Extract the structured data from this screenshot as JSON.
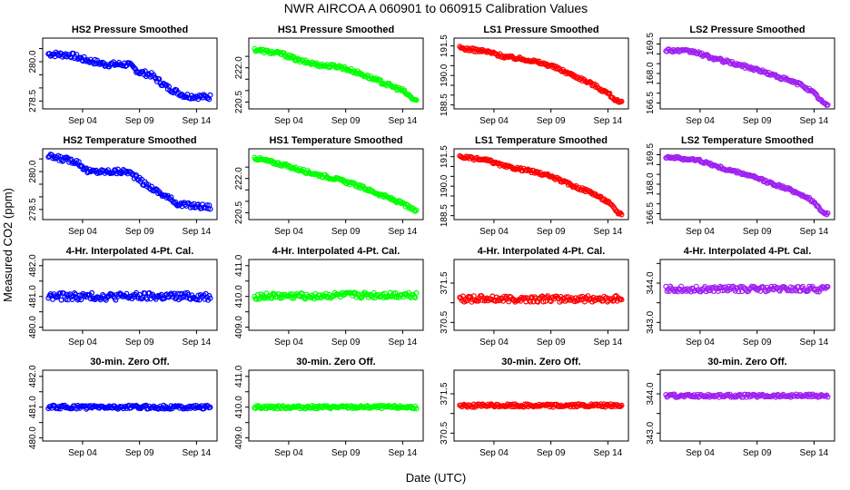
{
  "figure": {
    "title": "NWR   AIRCOA A   060901 to 060915   Calibration Values",
    "xlabel": "Date (UTC)",
    "ylabel": "Measured CO2 (ppm)"
  },
  "chart_data": [
    {
      "type": "scatter",
      "title": "HS2 Pressure Smoothed",
      "color": "#0000ff",
      "xlim": [
        0.5,
        15.8
      ],
      "x_ticks": [
        4,
        9,
        14
      ],
      "x_tick_labels": [
        "Sep 04",
        "Sep 09",
        "Sep 14"
      ],
      "ylim": [
        278.2,
        280.9
      ],
      "y_ticks": [
        278.5,
        279.0,
        279.5,
        280.0,
        280.5
      ],
      "y_tick_labels": [
        "278.5",
        "",
        "",
        "280.0",
        ""
      ],
      "trend": [
        [
          1.0,
          280.3
        ],
        [
          3.0,
          280.25
        ],
        [
          4.0,
          280.1
        ],
        [
          6.0,
          279.9
        ],
        [
          8.0,
          279.9
        ],
        [
          9.0,
          279.6
        ],
        [
          10.0,
          279.5
        ],
        [
          11.5,
          279.0
        ],
        [
          13.0,
          278.7
        ],
        [
          15.0,
          278.65
        ]
      ],
      "noise": 0.1
    },
    {
      "type": "scatter",
      "title": "HS1 Pressure Smoothed",
      "color": "#00ff00",
      "xlim": [
        0.5,
        15.8
      ],
      "x_ticks": [
        4,
        9,
        14
      ],
      "x_tick_labels": [
        "Sep 04",
        "Sep 09",
        "Sep 14"
      ],
      "ylim": [
        220.2,
        223.3
      ],
      "y_ticks": [
        220.5,
        221.0,
        221.5,
        222.0,
        222.5
      ],
      "y_tick_labels": [
        "220.5",
        "",
        "",
        "222.0",
        ""
      ],
      "trend": [
        [
          1.0,
          222.8
        ],
        [
          3.5,
          222.6
        ],
        [
          5.0,
          222.3
        ],
        [
          7.0,
          222.1
        ],
        [
          8.5,
          222.05
        ],
        [
          10.0,
          221.8
        ],
        [
          12.0,
          221.4
        ],
        [
          14.0,
          221.0
        ],
        [
          15.0,
          220.6
        ]
      ],
      "noise": 0.08
    },
    {
      "type": "scatter",
      "title": "LS1 Pressure Smoothed",
      "color": "#ff0000",
      "xlim": [
        0.5,
        15.8
      ],
      "x_ticks": [
        4,
        9,
        14
      ],
      "x_tick_labels": [
        "Sep 04",
        "Sep 09",
        "Sep 14"
      ],
      "ylim": [
        188.3,
        191.9
      ],
      "y_ticks": [
        188.5,
        189.0,
        189.5,
        190.0,
        190.5,
        191.0,
        191.5
      ],
      "y_tick_labels": [
        "188.5",
        "",
        "",
        "190.0",
        "",
        "",
        "191.5"
      ],
      "trend": [
        [
          1.0,
          191.4
        ],
        [
          3.5,
          191.2
        ],
        [
          5.0,
          190.95
        ],
        [
          7.0,
          190.8
        ],
        [
          9.0,
          190.5
        ],
        [
          11.0,
          190.0
        ],
        [
          12.5,
          189.6
        ],
        [
          14.0,
          189.1
        ],
        [
          15.0,
          188.6
        ]
      ],
      "noise": 0.08
    },
    {
      "type": "scatter",
      "title": "LS2 Pressure Smoothed",
      "color": "#a020f0",
      "xlim": [
        0.5,
        15.8
      ],
      "x_ticks": [
        4,
        9,
        14
      ],
      "x_tick_labels": [
        "Sep 04",
        "Sep 09",
        "Sep 14"
      ],
      "ylim": [
        166.2,
        169.8
      ],
      "y_ticks": [
        166.5,
        167.0,
        167.5,
        168.0,
        168.5,
        169.0,
        169.5
      ],
      "y_tick_labels": [
        "166.5",
        "",
        "",
        "168.0",
        "",
        "",
        "169.5"
      ],
      "trend": [
        [
          1.0,
          169.2
        ],
        [
          3.5,
          169.1
        ],
        [
          5.0,
          168.8
        ],
        [
          7.0,
          168.5
        ],
        [
          9.0,
          168.2
        ],
        [
          11.0,
          167.8
        ],
        [
          13.0,
          167.4
        ],
        [
          14.0,
          167.0
        ],
        [
          15.0,
          166.4
        ]
      ],
      "noise": 0.08
    },
    {
      "type": "scatter",
      "title": "HS2 Temperature Smoothed",
      "color": "#0000ff",
      "xlim": [
        0.5,
        15.8
      ],
      "x_ticks": [
        4,
        9,
        14
      ],
      "x_tick_labels": [
        "Sep 04",
        "Sep 09",
        "Sep 14"
      ],
      "ylim": [
        278.1,
        280.9
      ],
      "y_ticks": [
        278.5,
        279.0,
        279.5,
        280.0,
        280.5
      ],
      "y_tick_labels": [
        "278.5",
        "",
        "",
        "280.0",
        ""
      ],
      "trend": [
        [
          1.0,
          280.6
        ],
        [
          3.5,
          280.4
        ],
        [
          4.5,
          280.0
        ],
        [
          6.5,
          280.0
        ],
        [
          8.0,
          280.0
        ],
        [
          9.5,
          279.5
        ],
        [
          11.0,
          279.1
        ],
        [
          12.5,
          278.7
        ],
        [
          15.0,
          278.6
        ]
      ],
      "noise": 0.1
    },
    {
      "type": "scatter",
      "title": "HS1 Temperature Smoothed",
      "color": "#00ff00",
      "xlim": [
        0.5,
        15.8
      ],
      "x_ticks": [
        4,
        9,
        14
      ],
      "x_tick_labels": [
        "Sep 04",
        "Sep 09",
        "Sep 14"
      ],
      "ylim": [
        220.2,
        223.3
      ],
      "y_ticks": [
        220.5,
        221.0,
        221.5,
        222.0,
        222.5
      ],
      "y_tick_labels": [
        "220.5",
        "",
        "",
        "222.0",
        ""
      ],
      "trend": [
        [
          1.0,
          222.9
        ],
        [
          3.5,
          222.6
        ],
        [
          5.5,
          222.3
        ],
        [
          8.0,
          222.0
        ],
        [
          10.0,
          221.7
        ],
        [
          12.0,
          221.3
        ],
        [
          14.0,
          220.9
        ],
        [
          15.0,
          220.6
        ]
      ],
      "noise": 0.07
    },
    {
      "type": "scatter",
      "title": "LS1 Temperature Smoothed",
      "color": "#ff0000",
      "xlim": [
        0.5,
        15.8
      ],
      "x_ticks": [
        4,
        9,
        14
      ],
      "x_tick_labels": [
        "Sep 04",
        "Sep 09",
        "Sep 14"
      ],
      "ylim": [
        188.3,
        191.9
      ],
      "y_ticks": [
        188.5,
        189.0,
        189.5,
        190.0,
        190.5,
        191.0,
        191.5
      ],
      "y_tick_labels": [
        "188.5",
        "",
        "",
        "190.0",
        "",
        "",
        "191.5"
      ],
      "trend": [
        [
          1.0,
          191.5
        ],
        [
          3.5,
          191.3
        ],
        [
          5.0,
          191.0
        ],
        [
          7.0,
          190.8
        ],
        [
          9.0,
          190.5
        ],
        [
          11.0,
          190.0
        ],
        [
          12.5,
          189.7
        ],
        [
          14.0,
          189.2
        ],
        [
          15.0,
          188.6
        ]
      ],
      "noise": 0.07
    },
    {
      "type": "scatter",
      "title": "LS2 Temperature Smoothed",
      "color": "#a020f0",
      "xlim": [
        0.5,
        15.8
      ],
      "x_ticks": [
        4,
        9,
        14
      ],
      "x_tick_labels": [
        "Sep 04",
        "Sep 09",
        "Sep 14"
      ],
      "ylim": [
        166.2,
        169.8
      ],
      "y_ticks": [
        166.5,
        167.0,
        167.5,
        168.0,
        168.5,
        169.0,
        169.5
      ],
      "y_tick_labels": [
        "166.5",
        "",
        "",
        "168.0",
        "",
        "",
        "169.5"
      ],
      "trend": [
        [
          1.0,
          169.4
        ],
        [
          4.0,
          169.2
        ],
        [
          6.0,
          168.8
        ],
        [
          8.0,
          168.5
        ],
        [
          10.0,
          168.1
        ],
        [
          12.0,
          167.7
        ],
        [
          13.5,
          167.3
        ],
        [
          15.0,
          166.5
        ]
      ],
      "noise": 0.07
    },
    {
      "type": "scatter",
      "title": "4-Hr. Interpolated 4-Pt. Cal.",
      "color": "#0000ff",
      "xlim": [
        0.5,
        15.8
      ],
      "x_ticks": [
        4,
        9,
        14
      ],
      "x_tick_labels": [
        "Sep 04",
        "Sep 09",
        "Sep 14"
      ],
      "ylim": [
        479.9,
        482.2
      ],
      "y_ticks": [
        480.0,
        480.5,
        481.0,
        481.5,
        482.0
      ],
      "y_tick_labels": [
        "480.0",
        "",
        "481.0",
        "",
        "482.0"
      ],
      "trend": [
        [
          1.0,
          481.0
        ],
        [
          15.0,
          481.0
        ]
      ],
      "noise": 0.12
    },
    {
      "type": "scatter",
      "title": "4-Hr. Interpolated 4-Pt. Cal.",
      "color": "#00ff00",
      "xlim": [
        0.5,
        15.8
      ],
      "x_ticks": [
        4,
        9,
        14
      ],
      "x_tick_labels": [
        "Sep 04",
        "Sep 09",
        "Sep 14"
      ],
      "ylim": [
        408.9,
        411.2
      ],
      "y_ticks": [
        409.0,
        409.5,
        410.0,
        410.5,
        411.0
      ],
      "y_tick_labels": [
        "409.0",
        "",
        "410.0",
        "",
        "411.0"
      ],
      "trend": [
        [
          1.0,
          410.0
        ],
        [
          15.0,
          410.05
        ]
      ],
      "noise": 0.1
    },
    {
      "type": "scatter",
      "title": "4-Hr. Interpolated 4-Pt. Cal.",
      "color": "#ff0000",
      "xlim": [
        0.5,
        15.8
      ],
      "x_ticks": [
        4,
        9,
        14
      ],
      "x_tick_labels": [
        "Sep 04",
        "Sep 09",
        "Sep 14"
      ],
      "ylim": [
        370.3,
        372.1
      ],
      "y_ticks": [
        370.5,
        371.0,
        371.5
      ],
      "y_tick_labels": [
        "370.5",
        "",
        "371.5"
      ],
      "trend": [
        [
          1.0,
          371.1
        ],
        [
          15.0,
          371.1
        ]
      ],
      "noise": 0.08
    },
    {
      "type": "scatter",
      "title": "4-Hr. Interpolated 4-Pt. Cal.",
      "color": "#a020f0",
      "xlim": [
        0.5,
        15.8
      ],
      "x_ticks": [
        4,
        9,
        14
      ],
      "x_tick_labels": [
        "Sep 04",
        "Sep 09",
        "Sep 14"
      ],
      "ylim": [
        342.8,
        344.6
      ],
      "y_ticks": [
        343.0,
        343.5,
        344.0,
        344.5
      ],
      "y_tick_labels": [
        "343.0",
        "",
        "344.0",
        ""
      ],
      "trend": [
        [
          1.0,
          343.85
        ],
        [
          15.0,
          343.85
        ]
      ],
      "noise": 0.07
    },
    {
      "type": "scatter",
      "title": "30-min. Zero Off.",
      "color": "#0000ff",
      "xlim": [
        0.5,
        15.8
      ],
      "x_ticks": [
        4,
        9,
        14
      ],
      "x_tick_labels": [
        "Sep 04",
        "Sep 09",
        "Sep 14"
      ],
      "ylim": [
        479.9,
        482.2
      ],
      "y_ticks": [
        480.0,
        480.5,
        481.0,
        481.5,
        482.0
      ],
      "y_tick_labels": [
        "480.0",
        "",
        "481.0",
        "",
        "482.0"
      ],
      "trend": [
        [
          1.0,
          481.0
        ],
        [
          15.0,
          481.0
        ]
      ],
      "noise": 0.06
    },
    {
      "type": "scatter",
      "title": "30-min. Zero Off.",
      "color": "#00ff00",
      "xlim": [
        0.5,
        15.8
      ],
      "x_ticks": [
        4,
        9,
        14
      ],
      "x_tick_labels": [
        "Sep 04",
        "Sep 09",
        "Sep 14"
      ],
      "ylim": [
        408.9,
        411.2
      ],
      "y_ticks": [
        409.0,
        409.5,
        410.0,
        410.5,
        411.0
      ],
      "y_tick_labels": [
        "409.0",
        "",
        "410.0",
        "",
        "411.0"
      ],
      "trend": [
        [
          1.0,
          410.0
        ],
        [
          15.0,
          410.0
        ]
      ],
      "noise": 0.05
    },
    {
      "type": "scatter",
      "title": "30-min. Zero Off.",
      "color": "#ff0000",
      "xlim": [
        0.5,
        15.8
      ],
      "x_ticks": [
        4,
        9,
        14
      ],
      "x_tick_labels": [
        "Sep 04",
        "Sep 09",
        "Sep 14"
      ],
      "ylim": [
        370.3,
        372.1
      ],
      "y_ticks": [
        370.5,
        371.0,
        371.5
      ],
      "y_tick_labels": [
        "370.5",
        "",
        "371.5"
      ],
      "trend": [
        [
          1.0,
          371.2
        ],
        [
          15.0,
          371.2
        ]
      ],
      "noise": 0.04
    },
    {
      "type": "scatter",
      "title": "30-min. Zero Off.",
      "color": "#a020f0",
      "xlim": [
        0.5,
        15.8
      ],
      "x_ticks": [
        4,
        9,
        14
      ],
      "x_tick_labels": [
        "Sep 04",
        "Sep 09",
        "Sep 14"
      ],
      "ylim": [
        342.8,
        344.6
      ],
      "y_ticks": [
        343.0,
        343.5,
        344.0,
        344.5
      ],
      "y_tick_labels": [
        "343.0",
        "",
        "344.0",
        ""
      ],
      "trend": [
        [
          1.0,
          343.95
        ],
        [
          15.0,
          343.95
        ]
      ],
      "noise": 0.04
    }
  ]
}
